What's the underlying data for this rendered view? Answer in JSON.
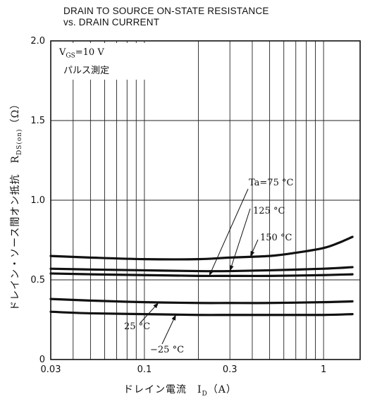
{
  "chart_data": {
    "type": "line",
    "title": "DRAIN TO SOURCE ON-STATE RESISTANCE",
    "subtitle": "vs. DRAIN CURRENT",
    "xlabel": "ドレイン電流　I",
    "xlabel_sub": "D",
    "xlabel_unit": "（A）",
    "ylabel": "ドレイン・ソース間オン抵抗　R",
    "ylabel_sub": "DS(on)",
    "ylabel_unit": "（Ω）",
    "x_scale": "log",
    "xlim": [
      0.03,
      1.6
    ],
    "ylim": [
      0,
      2.0
    ],
    "x_ticks": [
      "0.03",
      "0.1",
      "0.3",
      "1"
    ],
    "y_ticks": [
      "0",
      "0.5",
      "1.0",
      "1.5",
      "2.0"
    ],
    "grid": true,
    "legend_box": {
      "line1_prefix": "V",
      "line1_sub": "GS",
      "line1_suffix": "=10 V",
      "line2": "パルス測定"
    },
    "annotations": [
      "Ta=75 °C",
      "125 °C",
      "150 °C",
      "25 °C",
      "−25 °C"
    ],
    "series": [
      {
        "name": "150 °C",
        "x": [
          0.03,
          0.05,
          0.1,
          0.2,
          0.3,
          0.5,
          0.7,
          1.0,
          1.2,
          1.45
        ],
        "y": [
          0.65,
          0.64,
          0.63,
          0.63,
          0.64,
          0.65,
          0.67,
          0.7,
          0.73,
          0.77
        ]
      },
      {
        "name": "125 °C",
        "x": [
          0.03,
          0.05,
          0.1,
          0.2,
          0.3,
          0.5,
          1.0,
          1.45
        ],
        "y": [
          0.57,
          0.565,
          0.56,
          0.555,
          0.555,
          0.56,
          0.57,
          0.58
        ]
      },
      {
        "name": "Ta=75 °C",
        "x": [
          0.03,
          0.05,
          0.1,
          0.2,
          0.3,
          0.5,
          1.0,
          1.45
        ],
        "y": [
          0.54,
          0.535,
          0.53,
          0.525,
          0.525,
          0.525,
          0.53,
          0.535
        ]
      },
      {
        "name": "25 °C",
        "x": [
          0.03,
          0.05,
          0.1,
          0.2,
          0.3,
          0.5,
          1.0,
          1.45
        ],
        "y": [
          0.38,
          0.37,
          0.36,
          0.355,
          0.355,
          0.355,
          0.36,
          0.365
        ]
      },
      {
        "name": "−25 °C",
        "x": [
          0.03,
          0.05,
          0.1,
          0.2,
          0.3,
          0.5,
          1.0,
          1.45
        ],
        "y": [
          0.3,
          0.29,
          0.285,
          0.28,
          0.28,
          0.28,
          0.28,
          0.285
        ]
      }
    ]
  }
}
